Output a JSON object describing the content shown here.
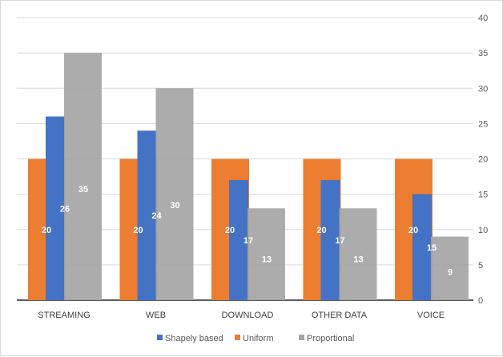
{
  "chart_data": {
    "type": "bar",
    "categories": [
      "STREAMING",
      "WEB",
      "DOWNLOAD",
      "OTHER DATA",
      "VOICE"
    ],
    "series": [
      {
        "name": "Shapely based",
        "color": "#4472C4",
        "values": [
          26,
          24,
          17,
          17,
          15
        ]
      },
      {
        "name": "Uniform",
        "color": "#ED7D31",
        "values": [
          20,
          20,
          20,
          20,
          20
        ]
      },
      {
        "name": "Proportional",
        "color": "#A5A5A5",
        "values": [
          35,
          30,
          13,
          13,
          9
        ]
      }
    ],
    "ylim": [
      0,
      40
    ],
    "yticks": [
      0,
      5,
      10,
      15,
      20,
      25,
      30,
      35,
      40
    ],
    "y_axis_side": "right",
    "grid": true,
    "legend_position": "bottom",
    "title": "",
    "xlabel": "",
    "ylabel": ""
  }
}
